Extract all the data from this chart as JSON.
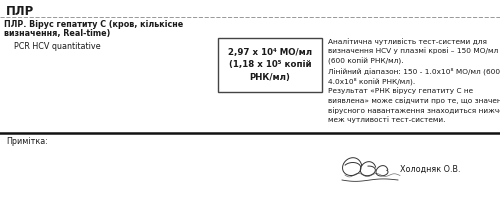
{
  "title": "ПЛР",
  "section_title_line1": "ПЛР. Вірус гепатиту С (кров, кількісне",
  "section_title_line2": "визначення, Real-time)",
  "test_name": "PCR HCV quantitative",
  "result_line1": "2,97 x 10⁴ МО/мл",
  "result_line2": "(1,18 x 10⁵ копій",
  "result_line3": "РНК/мл)",
  "comment_text": "Аналітична чутливість тест-системи для\nвизначення HCV у плазмі крові – 150 МО/мл\n(600 копій РНК/мл).\nЛінійний діапазон: 150 - 1.0х10⁸ МО/мл (600 -\n4.0х10⁸ копій РНК/мл).\nРезультат «РНК вірусу гепатиту С не\nвиявлена» може свідчити про те, що значення\nвірусного навантаження знаходиться нижче\nмеж чутливості тест-системи.",
  "note_label": "Примітка:",
  "signature_text": "Холодняк О.В.",
  "bg_color": "#ffffff",
  "text_color": "#1a1a1a",
  "border_color": "#444444",
  "title_fontsize": 8.5,
  "body_fontsize": 5.8,
  "result_fontsize": 6.2,
  "comment_fontsize": 5.3
}
